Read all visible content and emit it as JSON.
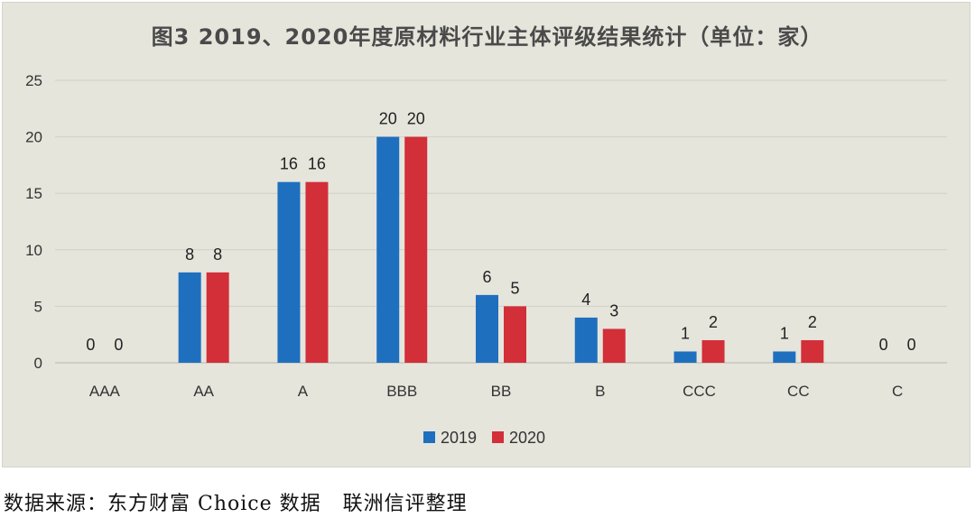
{
  "chart_data": {
    "type": "bar",
    "title": "图3   2019、2020年度原材料行业主体评级结果统计（单位：家）",
    "categories": [
      "AAA",
      "AA",
      "A",
      "BBB",
      "BB",
      "B",
      "CCC",
      "CC",
      "C"
    ],
    "series": [
      {
        "name": "2019",
        "color": "#1f6fbf",
        "values": [
          0,
          8,
          16,
          20,
          6,
          4,
          1,
          1,
          0
        ]
      },
      {
        "name": "2020",
        "color": "#d22f38",
        "values": [
          0,
          8,
          16,
          20,
          5,
          3,
          2,
          2,
          0
        ]
      }
    ],
    "ylim": [
      0,
      25
    ],
    "yticks": [
      0,
      5,
      10,
      15,
      20,
      25
    ],
    "grid": true,
    "legend_position": "bottom",
    "data_labels": true
  },
  "source_note": "数据来源：东方财富 Choice 数据   联洲信评整理"
}
